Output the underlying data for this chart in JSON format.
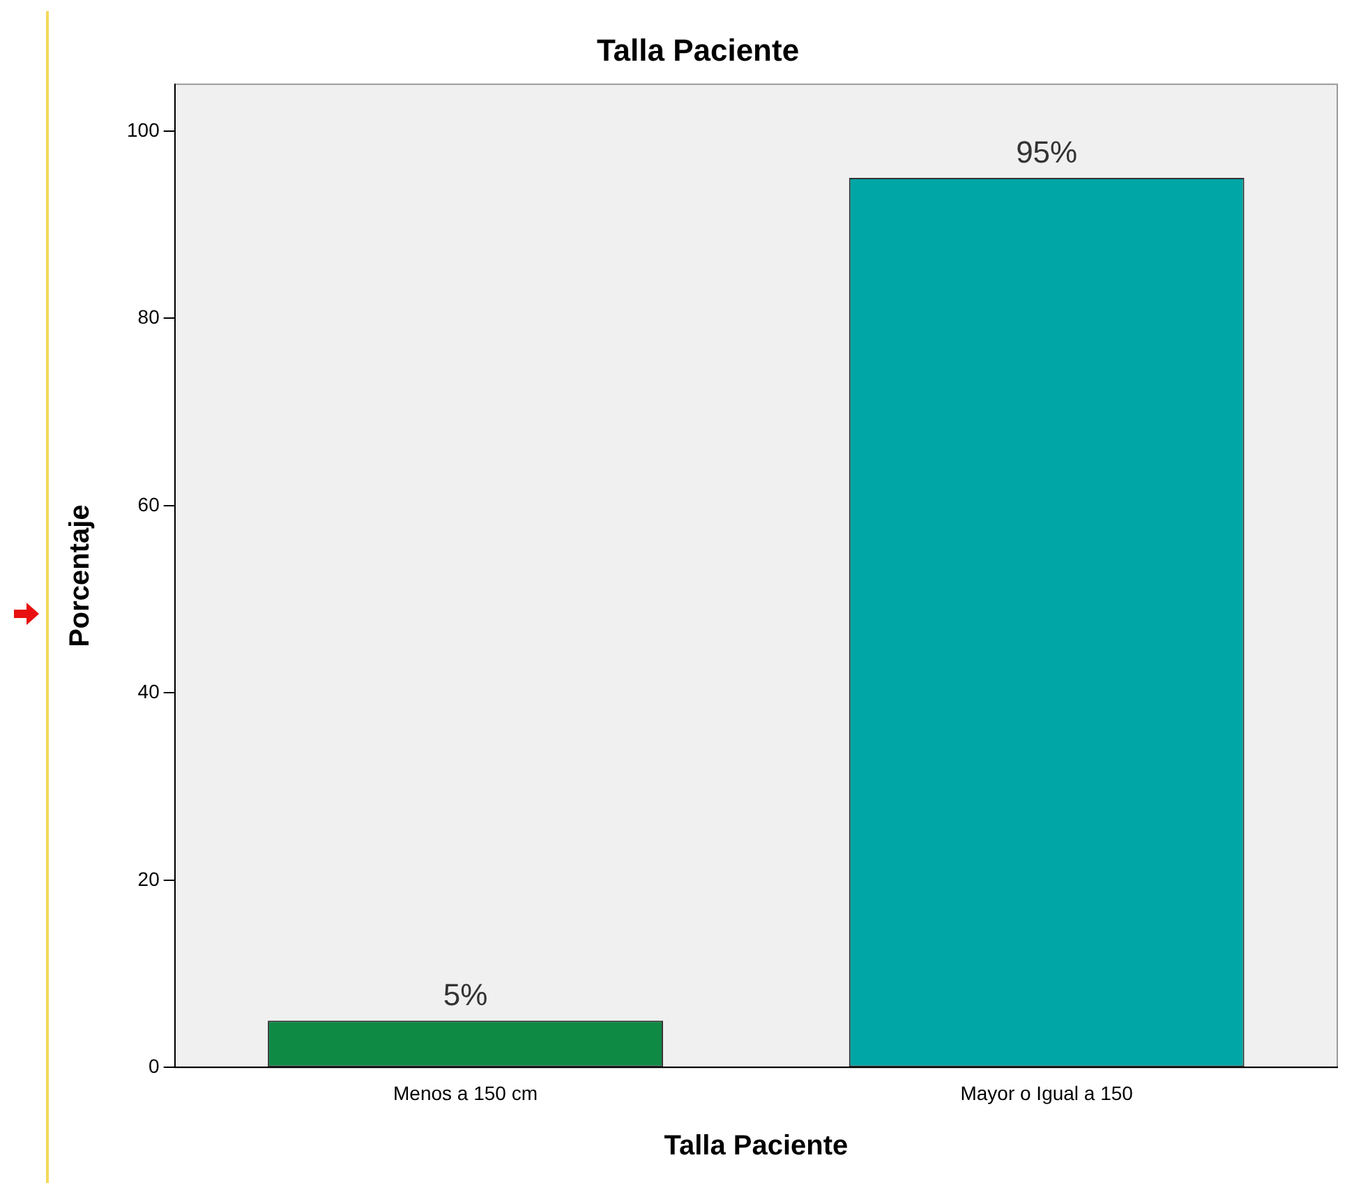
{
  "chart_data": {
    "type": "bar",
    "title": "Talla Paciente",
    "xlabel": "Talla Paciente",
    "ylabel": "Porcentaje",
    "categories": [
      "Menos a 150 cm",
      "Mayor o Igual a 150"
    ],
    "values": [
      5,
      95
    ],
    "colors": [
      "#0e8a45",
      "#00a6a6"
    ],
    "value_labels": [
      "5%",
      "95%"
    ],
    "ylim": [
      0,
      105
    ],
    "yticks": [
      0,
      20,
      40,
      60,
      80,
      100
    ],
    "grid": false,
    "legend": false
  }
}
